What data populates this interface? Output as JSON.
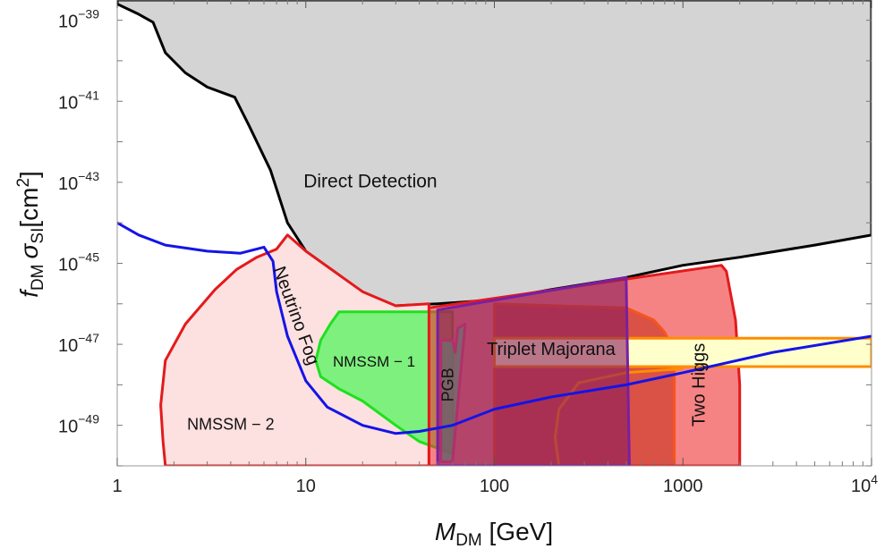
{
  "chart_data": {
    "type": "area",
    "xlabel": {
      "main": "M",
      "sub": "DM",
      "unit": " [GeV]"
    },
    "ylabel": {
      "f": "f",
      "fsub": "DM",
      "sigma": "σ",
      "sigmasub": "SI",
      "unit": "[cm",
      "unitsup": "2",
      "close": "]"
    },
    "x_scale": "log",
    "y_scale": "log",
    "xlim": [
      1,
      10000
    ],
    "ylim_exponent": [
      -50.0,
      -38.5
    ],
    "x_ticks": [
      {
        "value": 1,
        "label": "1"
      },
      {
        "value": 10,
        "label": "10"
      },
      {
        "value": 100,
        "label": "100"
      },
      {
        "value": 1000,
        "label": "1000"
      },
      {
        "value": 10000,
        "base": "10",
        "exp": "4"
      }
    ],
    "y_ticks": [
      {
        "exp": -39,
        "base": "10",
        "label": "−39"
      },
      {
        "exp": -41,
        "base": "10",
        "label": "−41"
      },
      {
        "exp": -43,
        "base": "10",
        "label": "−43"
      },
      {
        "exp": -45,
        "base": "10",
        "label": "−45"
      },
      {
        "exp": -47,
        "base": "10",
        "label": "−47"
      },
      {
        "exp": -49,
        "base": "10",
        "label": "−49"
      }
    ],
    "regions": [
      {
        "name": "Direct Detection",
        "fill": "#d4d4d4",
        "fill_opacity": 1,
        "stroke": "#000000",
        "stroke_width": 3,
        "label_pos": [
          22,
          -43.0
        ],
        "label_rot": 0,
        "label_size": 21,
        "points": [
          [
            1,
            -38.6
          ],
          [
            1.3,
            -38.85
          ],
          [
            1.55,
            -39.05
          ],
          [
            1.8,
            -39.8
          ],
          [
            2.3,
            -40.3
          ],
          [
            3.0,
            -40.65
          ],
          [
            4.2,
            -40.9
          ],
          [
            5.0,
            -41.6
          ],
          [
            6.5,
            -42.7
          ],
          [
            8.0,
            -44.0
          ],
          [
            10,
            -44.7
          ],
          [
            15,
            -45.5
          ],
          [
            20,
            -45.8
          ],
          [
            30,
            -46.05
          ],
          [
            50,
            -46.0
          ],
          [
            100,
            -45.9
          ],
          [
            200,
            -45.65
          ],
          [
            500,
            -45.35
          ],
          [
            1000,
            -45.05
          ],
          [
            2000,
            -44.85
          ],
          [
            5000,
            -44.55
          ],
          [
            10000,
            -44.3
          ],
          [
            10000,
            -38.5
          ],
          [
            1,
            -38.5
          ]
        ]
      },
      {
        "name": "NMSSM − 2",
        "fill": "#fde0e0",
        "fill_opacity": 1,
        "stroke": "#e31a1c",
        "stroke_width": 3,
        "label_pos": [
          4.0,
          -49.0
        ],
        "label_rot": 0,
        "label_size": 18,
        "points": [
          [
            1.8,
            -50.0
          ],
          [
            1.75,
            -49.4
          ],
          [
            1.7,
            -48.5
          ],
          [
            1.8,
            -47.4
          ],
          [
            2.3,
            -46.5
          ],
          [
            3.3,
            -45.65
          ],
          [
            4.3,
            -45.15
          ],
          [
            5.5,
            -44.85
          ],
          [
            7.0,
            -44.65
          ],
          [
            8.0,
            -44.3
          ],
          [
            10,
            -44.7
          ],
          [
            20,
            -45.7
          ],
          [
            30,
            -46.05
          ],
          [
            45,
            -46.0
          ],
          [
            45,
            -50.0
          ]
        ]
      },
      {
        "name": "NMSSM − 1",
        "fill": "#7ef07e",
        "fill_opacity": 1,
        "stroke": "#1fe01f",
        "stroke_width": 3,
        "label_pos": [
          23,
          -47.45
        ],
        "label_rot": 0,
        "label_size": 17,
        "points": [
          [
            15,
            -46.2
          ],
          [
            60,
            -46.2
          ],
          [
            60,
            -49.7
          ],
          [
            40,
            -49.4
          ],
          [
            30,
            -49.0
          ],
          [
            20,
            -48.4
          ],
          [
            15,
            -48.1
          ],
          [
            12,
            -47.8
          ],
          [
            11.3,
            -47.4
          ],
          [
            12,
            -46.9
          ],
          [
            13.5,
            -46.5
          ]
        ]
      },
      {
        "name": "Triplet Majorana",
        "fill": "#a0522d",
        "fill_opacity": 0.72,
        "stroke": "#ff8c00",
        "stroke_width": 3,
        "label_pos": [
          200,
          -47.15
        ],
        "label_rot": 0,
        "label_size": 20,
        "points": [
          [
            100,
            -46.0
          ],
          [
            500,
            -46.1
          ],
          [
            700,
            -46.4
          ],
          [
            800,
            -46.7
          ],
          [
            900,
            -47.2
          ],
          [
            900,
            -50.0
          ],
          [
            100,
            -50.0
          ]
        ]
      },
      {
        "name": "Two Higgs",
        "fill": "#f03030",
        "fill_opacity": 0.6,
        "stroke": "#e31a1c",
        "stroke_width": 3,
        "label_pos": [
          1230,
          -48.0
        ],
        "label_rot": -90,
        "label_size": 20,
        "points": [
          [
            45,
            -46.1
          ],
          [
            1600,
            -45.05
          ],
          [
            1700,
            -45.2
          ],
          [
            1900,
            -46.4
          ],
          [
            2000,
            -48.0
          ],
          [
            2000,
            -50.0
          ],
          [
            45,
            -50.0
          ]
        ]
      },
      {
        "name": "Two Higgs band",
        "fill": "#ffffcc",
        "fill_opacity": 1,
        "stroke": "#ff8c00",
        "stroke_width": 3,
        "points": [
          [
            100,
            -46.85
          ],
          [
            10000,
            -46.85
          ],
          [
            10000,
            -47.55
          ],
          [
            100,
            -47.55
          ]
        ]
      },
      {
        "name": "Triplet Majorana lower edge",
        "fill": "none",
        "fill_opacity": 0,
        "stroke": "#ff8c00",
        "stroke_width": 3,
        "points": [
          [
            220,
            -50.0
          ],
          [
            210,
            -49.3
          ],
          [
            220,
            -48.6
          ],
          [
            280,
            -47.95
          ],
          [
            500,
            -47.7
          ],
          [
            1000,
            -47.6
          ]
        ]
      },
      {
        "name": "Scalar singlet",
        "fill": "#8b1a5b",
        "fill_opacity": 0.6,
        "stroke": "#7a1fa2",
        "stroke_width": 3,
        "points": [
          [
            50,
            -46.15
          ],
          [
            500,
            -45.35
          ],
          [
            520,
            -50.0
          ],
          [
            50,
            -50.0
          ]
        ]
      },
      {
        "name": "PGB",
        "fill": "#6d6d6d",
        "fill_opacity": 0.75,
        "stroke": "#b0306b",
        "stroke_width": 3,
        "label_pos": [
          57.5,
          -48.0
        ],
        "label_rot": -90,
        "label_size": 18,
        "points": [
          [
            52,
            -46.9
          ],
          [
            60,
            -46.9
          ],
          [
            62,
            -47.2
          ],
          [
            64,
            -46.6
          ],
          [
            70,
            -46.5
          ],
          [
            60,
            -49.9
          ],
          [
            52,
            -49.9
          ]
        ]
      }
    ],
    "lines": [
      {
        "name": "Neutrino Fog",
        "stroke": "#1414e6",
        "stroke_width": 3,
        "label_pos": [
          8.8,
          -46.3
        ],
        "label_rot": 70,
        "label_size": 20,
        "points": [
          [
            1,
            -44.0
          ],
          [
            1.3,
            -44.3
          ],
          [
            1.8,
            -44.55
          ],
          [
            3,
            -44.7
          ],
          [
            4.5,
            -44.75
          ],
          [
            6,
            -44.6
          ],
          [
            6.7,
            -44.95
          ],
          [
            7,
            -45.7
          ],
          [
            8,
            -46.8
          ],
          [
            10,
            -47.9
          ],
          [
            13,
            -48.55
          ],
          [
            20,
            -49.0
          ],
          [
            30,
            -49.2
          ],
          [
            40,
            -49.15
          ],
          [
            60,
            -49.0
          ],
          [
            100,
            -48.6
          ],
          [
            200,
            -48.3
          ],
          [
            500,
            -48.0
          ],
          [
            1000,
            -47.7
          ],
          [
            3000,
            -47.2
          ],
          [
            10000,
            -46.8
          ]
        ]
      }
    ]
  }
}
